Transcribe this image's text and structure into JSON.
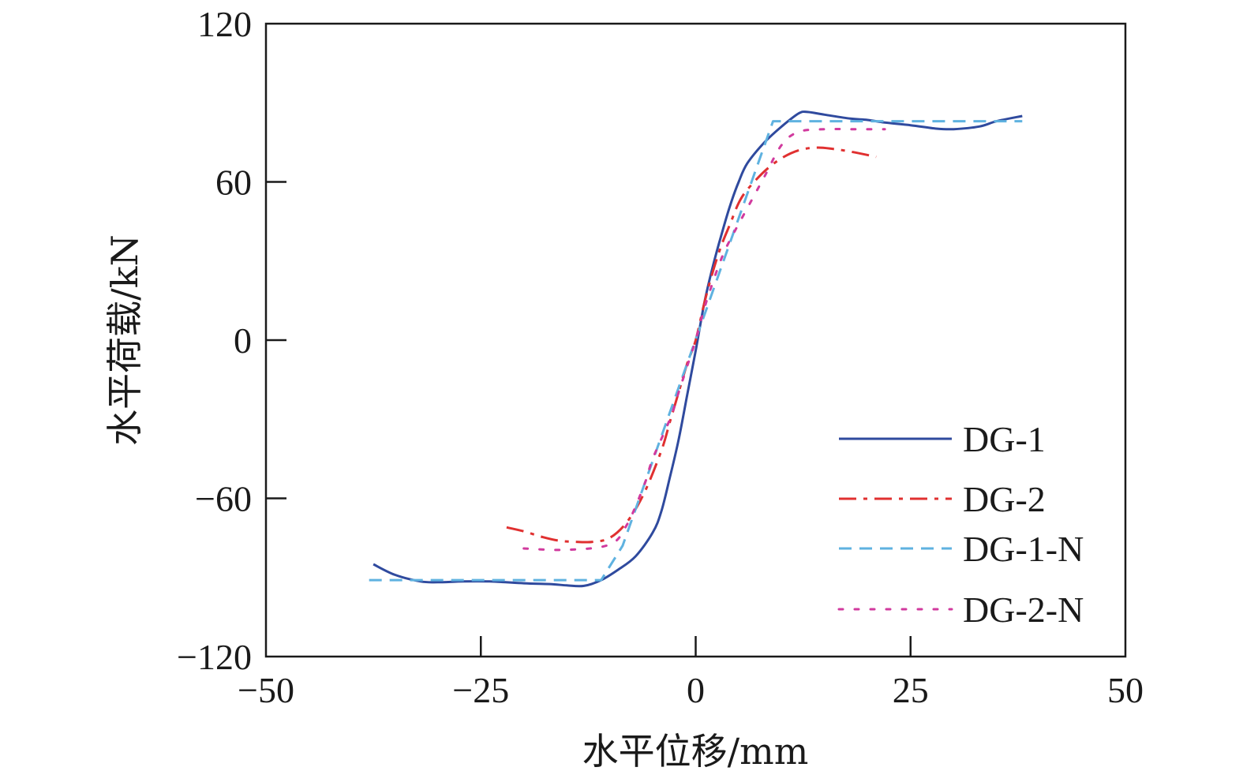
{
  "chart_data": {
    "type": "line",
    "xlabel": "水平位移/mm",
    "ylabel": "水平荷载/kN",
    "xlim": [
      -50,
      50
    ],
    "ylim": [
      -120,
      120
    ],
    "x_ticks": [
      -50,
      -25,
      0,
      25,
      50
    ],
    "x_tick_labels": [
      "−50",
      "−25",
      "0",
      "25",
      "50"
    ],
    "y_ticks": [
      -120,
      -60,
      0,
      60,
      120
    ],
    "y_tick_labels": [
      "−120",
      "−60",
      "0",
      "60",
      "120"
    ],
    "grid": false,
    "legend_position": "bottom-right",
    "series": [
      {
        "name": "DG-1",
        "color": "#2f4a9e",
        "style": "solid",
        "x": [
          -37.5,
          -35,
          -32,
          -30,
          -27,
          -24,
          -20,
          -17,
          -15,
          -13,
          -11,
          -9,
          -7,
          -5,
          -4,
          -3,
          -2,
          -1,
          0,
          1,
          2,
          3,
          4,
          5,
          6,
          8,
          10,
          12,
          13,
          15,
          18,
          20,
          22,
          25,
          28,
          30,
          33,
          35,
          38
        ],
        "y": [
          -85,
          -89,
          -91.5,
          -91.8,
          -91.5,
          -91.5,
          -92.2,
          -92.5,
          -93,
          -93.2,
          -91,
          -87,
          -82,
          -73,
          -65,
          -52,
          -38,
          -21,
          -4,
          14,
          28,
          40,
          51,
          60,
          67,
          75,
          81,
          86,
          86.5,
          85.5,
          84,
          83.5,
          82.5,
          81.5,
          80.2,
          80,
          81,
          83,
          85
        ]
      },
      {
        "name": "DG-2",
        "color": "#e03030",
        "style": "dashdot",
        "x": [
          -22,
          -20,
          -18,
          -16,
          -14,
          -12,
          -10,
          -8,
          -6,
          -4,
          -3,
          -2,
          -1,
          0,
          1,
          2,
          3,
          4,
          5,
          6,
          8,
          10,
          12,
          14,
          16,
          18,
          21
        ],
        "y": [
          -71,
          -72.5,
          -74.5,
          -76,
          -76.5,
          -76.5,
          -75,
          -69,
          -58,
          -42,
          -31,
          -20,
          -9,
          0,
          14,
          26,
          36,
          44,
          52,
          57,
          64,
          69,
          72,
          73,
          72.5,
          71.5,
          69.5
        ]
      },
      {
        "name": "DG-1-N",
        "color": "#5fb2e0",
        "style": "dashed",
        "x": [
          -38,
          -11,
          -8.5,
          9,
          38
        ],
        "y": [
          -91,
          -91,
          -78,
          83,
          83
        ]
      },
      {
        "name": "DG-2-N",
        "color": "#d13a9e",
        "style": "dotted",
        "x": [
          -20,
          -15,
          -10,
          -8,
          -6,
          -5,
          -3,
          -2,
          -1,
          0,
          1,
          2,
          3,
          4,
          6,
          8,
          10,
          12,
          15,
          18,
          22
        ],
        "y": [
          -79,
          -79.5,
          -77.5,
          -70,
          -55,
          -45,
          -30,
          -20,
          -10,
          0,
          12,
          22,
          31,
          38,
          50,
          62,
          74,
          79,
          80,
          80,
          80
        ]
      }
    ]
  }
}
